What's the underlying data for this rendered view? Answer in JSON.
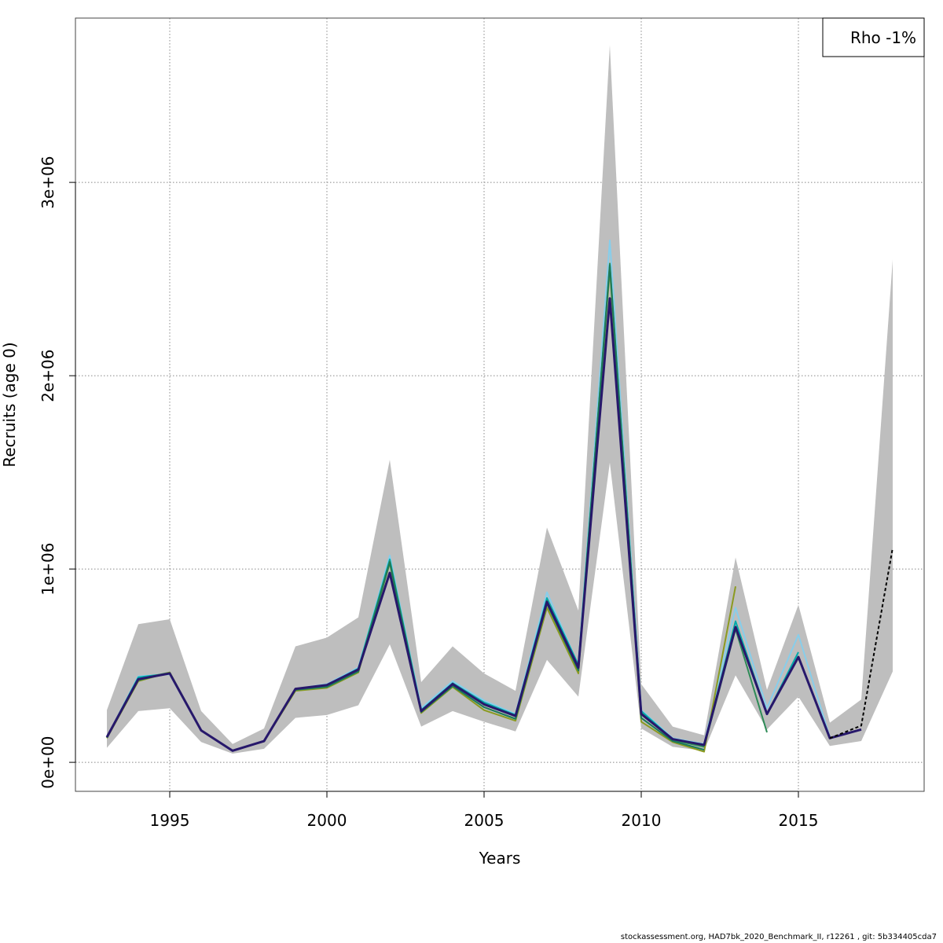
{
  "footer": "stockassessment.org, HAD7bk_2020_Benchmark_II, r12261 , git: 5b334405cda7",
  "chart_data": {
    "type": "line",
    "title": "",
    "xlabel": "Years",
    "ylabel": "Recruits (age 0)",
    "xlim": [
      1992,
      2019
    ],
    "ylim": [
      -150000,
      3850000
    ],
    "x_ticks": [
      1995,
      2000,
      2005,
      2010,
      2015
    ],
    "x_tick_labels": [
      "1995",
      "2000",
      "2005",
      "2010",
      "2015"
    ],
    "y_ticks": [
      0,
      1000000,
      2000000,
      3000000
    ],
    "y_tick_labels": [
      "0e+00",
      "1e+06",
      "2e+06",
      "3e+06"
    ],
    "grid": true,
    "legend": {
      "position": "top-right",
      "text": "Rho -1%"
    },
    "confidence_band": {
      "x": [
        1993,
        1994,
        1995,
        1996,
        1997,
        1998,
        1999,
        2000,
        2001,
        2002,
        2003,
        2004,
        2005,
        2006,
        2007,
        2008,
        2009,
        2010,
        2011,
        2012,
        2013,
        2014,
        2015,
        2016,
        2017,
        2018
      ],
      "lower": [
        75000,
        265000,
        280000,
        105000,
        45000,
        70000,
        230000,
        245000,
        295000,
        610000,
        185000,
        265000,
        210000,
        160000,
        530000,
        340000,
        1550000,
        175000,
        80000,
        60000,
        450000,
        170000,
        340000,
        85000,
        110000,
        470000
      ],
      "upper": [
        270000,
        715000,
        740000,
        265000,
        95000,
        175000,
        600000,
        645000,
        750000,
        1565000,
        415000,
        600000,
        460000,
        370000,
        1215000,
        785000,
        3710000,
        405000,
        185000,
        140000,
        1060000,
        375000,
        815000,
        205000,
        325000,
        2600000
      ],
      "color": "#bebebe"
    },
    "series": [
      {
        "color": "#87ceeb",
        "x": [
          1993,
          1994,
          1995,
          1996,
          1997,
          1998,
          1999,
          2000,
          2001,
          2002,
          2003,
          2004,
          2005,
          2006,
          2007,
          2008,
          2009,
          2010,
          2011,
          2012,
          2013,
          2014,
          2015,
          2016
        ],
        "values": [
          130000,
          445000,
          455000,
          165000,
          60000,
          110000,
          380000,
          405000,
          490000,
          1070000,
          280000,
          420000,
          320000,
          250000,
          880000,
          500000,
          2700000,
          270000,
          125000,
          95000,
          800000,
          280000,
          660000,
          130000
        ]
      },
      {
        "color": "#00aaaa",
        "x": [
          1993,
          1994,
          1995,
          1996,
          1997,
          1998,
          1999,
          2000,
          2001,
          2002,
          2003,
          2004,
          2005,
          2006,
          2007,
          2008,
          2009,
          2010,
          2011,
          2012,
          2013,
          2014,
          2015
        ],
        "values": [
          130000,
          440000,
          460000,
          165000,
          60000,
          110000,
          380000,
          400000,
          485000,
          1050000,
          270000,
          410000,
          310000,
          245000,
          850000,
          505000,
          2560000,
          265000,
          120000,
          85000,
          730000,
          250000,
          570000
        ]
      },
      {
        "color": "#2e8b57",
        "x": [
          1993,
          1994,
          1995,
          1996,
          1997,
          1998,
          1999,
          2000,
          2001,
          2002,
          2003,
          2004,
          2005,
          2006,
          2007,
          2008,
          2009,
          2010,
          2011,
          2012,
          2013,
          2014
        ],
        "values": [
          130000,
          430000,
          465000,
          165000,
          60000,
          110000,
          380000,
          395000,
          480000,
          1040000,
          265000,
          405000,
          300000,
          240000,
          835000,
          490000,
          2580000,
          255000,
          115000,
          80000,
          690000,
          155000
        ]
      },
      {
        "color": "#8b9a20",
        "x": [
          1993,
          1994,
          1995,
          1996,
          1997,
          1998,
          1999,
          2000,
          2001,
          2002,
          2003,
          2004,
          2005,
          2006,
          2007,
          2008,
          2009,
          2010,
          2011,
          2012,
          2013
        ],
        "values": [
          125000,
          420000,
          465000,
          165000,
          60000,
          108000,
          370000,
          385000,
          465000,
          1030000,
          255000,
          390000,
          270000,
          215000,
          800000,
          460000,
          2550000,
          210000,
          105000,
          55000,
          910000
        ]
      },
      {
        "color": "#1a7a5a",
        "x": [
          1993,
          1994,
          1995,
          1996,
          1997,
          1998,
          1999,
          2000,
          2001,
          2002,
          2003,
          2004,
          2005,
          2006,
          2007,
          2008,
          2009,
          2010,
          2011,
          2012
        ],
        "values": [
          128000,
          425000,
          462000,
          165000,
          60000,
          110000,
          375000,
          390000,
          470000,
          1035000,
          260000,
          395000,
          285000,
          225000,
          820000,
          475000,
          2570000,
          230000,
          110000,
          65000
        ]
      },
      {
        "color": "#27186b",
        "width": 3,
        "x": [
          1993,
          1994,
          1995,
          1996,
          1997,
          1998,
          1999,
          2000,
          2001,
          2002,
          2003,
          2004,
          2005,
          2006,
          2007,
          2008,
          2009,
          2010,
          2011,
          2012,
          2013,
          2014,
          2015,
          2016,
          2017
        ],
        "values": [
          130000,
          430000,
          460000,
          165000,
          60000,
          110000,
          380000,
          400000,
          480000,
          980000,
          265000,
          405000,
          300000,
          240000,
          830000,
          490000,
          2400000,
          250000,
          120000,
          90000,
          700000,
          250000,
          545000,
          125000,
          170000
        ]
      },
      {
        "color": "#000000",
        "dashed": true,
        "x": [
          2016,
          2017,
          2018
        ],
        "values": [
          125000,
          190000,
          1110000
        ]
      }
    ]
  }
}
